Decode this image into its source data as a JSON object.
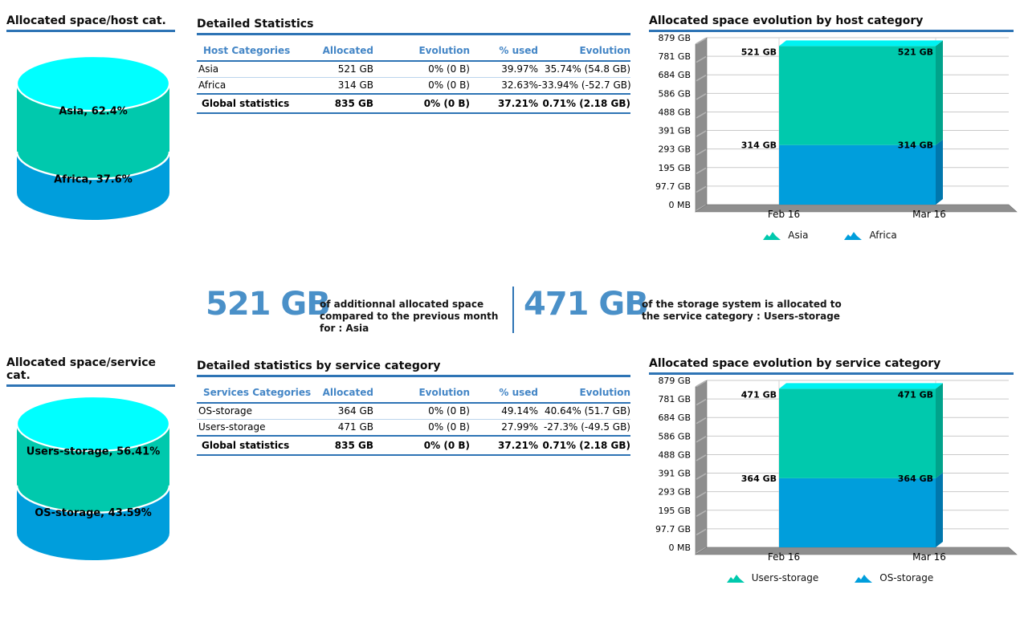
{
  "colors": {
    "teal": "#00C9AD",
    "teal_side": "#00A38C",
    "blue": "#009EDC",
    "blue_side": "#0077AD",
    "cyan_top": "#00F2F2",
    "pie_top": "#00FFFF",
    "title_rule": "#2E74B5",
    "table_header_text": "#4486C6",
    "kpi_value_text": "#4A90C8",
    "wall_gray": "#8E8E8E",
    "gridline": "#C9C9C9"
  },
  "kpis": [
    {
      "value": "521 GB",
      "text": "of additionnal allocated space compared to the previous month for : ",
      "bold": "Asia"
    },
    {
      "value": "471 GB",
      "text": "of the storage system is allocated to the service category : ",
      "bold": "Users-storage"
    }
  ],
  "chart_data": [
    {
      "type": "pie",
      "variant": "3d-cylinder",
      "title": "Allocated space/host cat.",
      "labels": [
        "Asia",
        "Africa"
      ],
      "values": [
        62.4,
        37.6
      ],
      "slice_labels": [
        "Asia, 62.4%",
        "Africa, 37.6%"
      ],
      "colors": [
        "#00C9AD",
        "#009EDC"
      ],
      "top_color": "#00FFFF"
    },
    {
      "type": "table",
      "title": "Detailed Statistics",
      "columns": [
        "Host Categories",
        "Allocated",
        "Evolution",
        "% used",
        "Evolution"
      ],
      "rows": [
        [
          "Asia",
          "521 GB",
          "0% (0 B)",
          "39.97%",
          "35.74% (54.8 GB)"
        ],
        [
          "Africa",
          "314 GB",
          "0% (0 B)",
          "32.63%",
          "-33.94% (-52.7 GB)"
        ],
        [
          "Global statistics",
          "835 GB",
          "0% (0 B)",
          "37.21%",
          "0.71% (2.18 GB)"
        ]
      ]
    },
    {
      "type": "area",
      "variant": "3d-stacked",
      "title": "Allocated space evolution by host category",
      "x": [
        "Feb 16",
        "Mar 16"
      ],
      "ylim": [
        0,
        879
      ],
      "yticks": [
        "879 GB",
        "781 GB",
        "684 GB",
        "586 GB",
        "488 GB",
        "391 GB",
        "293 GB",
        "195 GB",
        "97.7 GB",
        "0 MB"
      ],
      "grid": true,
      "legend_position": "bottom",
      "top_face_color": "#00F2F2",
      "series": [
        {
          "name": "Asia",
          "values": [
            521,
            521
          ],
          "point_labels": [
            "521 GB",
            "521 GB"
          ],
          "color": "#00C9AD",
          "side_color": "#00A38C"
        },
        {
          "name": "Africa",
          "values": [
            314,
            314
          ],
          "point_labels": [
            "314 GB",
            "314 GB"
          ],
          "color": "#009EDC",
          "side_color": "#0077AD"
        }
      ]
    },
    {
      "type": "pie",
      "variant": "3d-cylinder",
      "title": "Allocated space/service cat.",
      "labels": [
        "Users-storage",
        "OS-storage"
      ],
      "values": [
        56.41,
        43.59
      ],
      "slice_labels": [
        "Users-storage, 56.41%",
        "OS-storage, 43.59%"
      ],
      "colors": [
        "#00C9AD",
        "#009EDC"
      ],
      "top_color": "#00FFFF"
    },
    {
      "type": "table",
      "title": "Detailed statistics by service category",
      "columns": [
        "Services Categories",
        "Allocated",
        "Evolution",
        "% used",
        "Evolution"
      ],
      "rows": [
        [
          "OS-storage",
          "364 GB",
          "0% (0 B)",
          "49.14%",
          "40.64% (51.7 GB)"
        ],
        [
          "Users-storage",
          "471 GB",
          "0% (0 B)",
          "27.99%",
          "-27.3% (-49.5 GB)"
        ],
        [
          "Global statistics",
          "835 GB",
          "0% (0 B)",
          "37.21%",
          "0.71% (2.18 GB)"
        ]
      ]
    },
    {
      "type": "area",
      "variant": "3d-stacked",
      "title": "Allocated space evolution by service category",
      "x": [
        "Feb 16",
        "Mar 16"
      ],
      "ylim": [
        0,
        879
      ],
      "yticks": [
        "879 GB",
        "781 GB",
        "684 GB",
        "586 GB",
        "488 GB",
        "391 GB",
        "293 GB",
        "195 GB",
        "97.7 GB",
        "0 MB"
      ],
      "grid": true,
      "legend_position": "bottom",
      "top_face_color": "#00F2F2",
      "series": [
        {
          "name": "Users-storage",
          "values": [
            471,
            471
          ],
          "point_labels": [
            "471 GB",
            "471 GB"
          ],
          "color": "#00C9AD",
          "side_color": "#00A38C"
        },
        {
          "name": "OS-storage",
          "values": [
            364,
            364
          ],
          "point_labels": [
            "364 GB",
            "364 GB"
          ],
          "color": "#009EDC",
          "side_color": "#0077AD"
        }
      ]
    }
  ]
}
